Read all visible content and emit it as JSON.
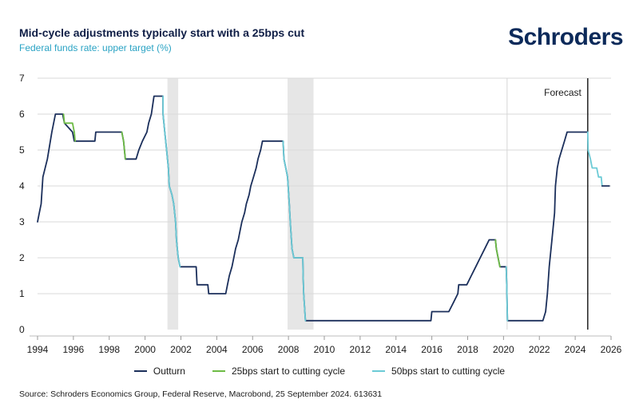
{
  "header": {
    "title": "Mid-cycle adjustments typically start with a 25bps cut",
    "subtitle": "Federal funds rate: upper target (%)",
    "brand": "Schroders"
  },
  "footer": {
    "source": "Source: Schroders Economics Group, Federal Reserve, Macrobond, 25 September 2024. 613631"
  },
  "colors": {
    "outturn": "#1b2f5b",
    "cut25": "#6dbb45",
    "cut50": "#6ccbd6",
    "shade": "#e6e6e6",
    "grid": "#d9d9d9"
  },
  "chart_data": {
    "type": "line",
    "xlim": [
      1994,
      2026
    ],
    "ylim": [
      0,
      7
    ],
    "x_ticks": [
      "1994",
      "1996",
      "1998",
      "2000",
      "2002",
      "2004",
      "2006",
      "2008",
      "2010",
      "2012",
      "2014",
      "2016",
      "2018",
      "2020",
      "2022",
      "2024",
      "2026"
    ],
    "y_ticks": [
      "0",
      "1",
      "2",
      "3",
      "4",
      "5",
      "6",
      "7"
    ],
    "grid": true,
    "legend_position": "bottom",
    "annotation": "Forecast",
    "forecast_start": 2024.7,
    "shaded_periods": [
      [
        2001.25,
        2001.85
      ],
      [
        2007.95,
        2009.4
      ]
    ],
    "series": [
      {
        "name": "Outturn",
        "key": "outturn",
        "points": [
          [
            1994.0,
            3.0
          ],
          [
            1994.1,
            3.25
          ],
          [
            1994.2,
            3.5
          ],
          [
            1994.3,
            4.25
          ],
          [
            1994.55,
            4.75
          ],
          [
            1994.8,
            5.5
          ],
          [
            1995.0,
            6.0
          ],
          [
            1995.4,
            6.0
          ],
          [
            1995.5,
            5.75
          ],
          [
            1995.95,
            5.5
          ],
          [
            1996.05,
            5.25
          ],
          [
            1997.2,
            5.25
          ],
          [
            1997.25,
            5.5
          ],
          [
            1998.7,
            5.5
          ],
          [
            1998.8,
            5.25
          ],
          [
            1998.85,
            5.0
          ],
          [
            1998.9,
            4.75
          ],
          [
            1999.5,
            4.75
          ],
          [
            1999.65,
            5.0
          ],
          [
            1999.85,
            5.25
          ],
          [
            2000.1,
            5.5
          ],
          [
            2000.2,
            5.75
          ],
          [
            2000.35,
            6.0
          ],
          [
            2000.5,
            6.5
          ],
          [
            2001.0,
            6.5
          ],
          [
            2001.0,
            6.0
          ],
          [
            2001.1,
            5.5
          ],
          [
            2001.2,
            5.0
          ],
          [
            2001.3,
            4.5
          ],
          [
            2001.35,
            4.0
          ],
          [
            2001.5,
            3.75
          ],
          [
            2001.6,
            3.5
          ],
          [
            2001.7,
            3.0
          ],
          [
            2001.75,
            2.5
          ],
          [
            2001.85,
            2.0
          ],
          [
            2001.95,
            1.75
          ],
          [
            2002.85,
            1.75
          ],
          [
            2002.9,
            1.25
          ],
          [
            2003.5,
            1.25
          ],
          [
            2003.55,
            1.0
          ],
          [
            2004.5,
            1.0
          ],
          [
            2004.6,
            1.25
          ],
          [
            2004.7,
            1.5
          ],
          [
            2004.85,
            1.75
          ],
          [
            2004.95,
            2.0
          ],
          [
            2005.05,
            2.25
          ],
          [
            2005.2,
            2.5
          ],
          [
            2005.3,
            2.75
          ],
          [
            2005.4,
            3.0
          ],
          [
            2005.55,
            3.25
          ],
          [
            2005.65,
            3.5
          ],
          [
            2005.8,
            3.75
          ],
          [
            2005.9,
            4.0
          ],
          [
            2006.05,
            4.25
          ],
          [
            2006.2,
            4.5
          ],
          [
            2006.3,
            4.75
          ],
          [
            2006.45,
            5.0
          ],
          [
            2006.55,
            5.25
          ],
          [
            2007.7,
            5.25
          ],
          [
            2007.75,
            4.75
          ],
          [
            2007.85,
            4.5
          ],
          [
            2007.95,
            4.25
          ],
          [
            2008.05,
            3.5
          ],
          [
            2008.1,
            3.0
          ],
          [
            2008.2,
            2.25
          ],
          [
            2008.3,
            2.0
          ],
          [
            2008.8,
            2.0
          ],
          [
            2008.82,
            1.5
          ],
          [
            2008.85,
            1.0
          ],
          [
            2008.95,
            0.25
          ],
          [
            2015.95,
            0.25
          ],
          [
            2016.0,
            0.5
          ],
          [
            2016.95,
            0.5
          ],
          [
            2017.2,
            0.75
          ],
          [
            2017.45,
            1.0
          ],
          [
            2017.5,
            1.25
          ],
          [
            2017.95,
            1.25
          ],
          [
            2018.2,
            1.5
          ],
          [
            2018.45,
            1.75
          ],
          [
            2018.7,
            2.0
          ],
          [
            2018.95,
            2.25
          ],
          [
            2019.2,
            2.5
          ],
          [
            2019.55,
            2.5
          ],
          [
            2019.6,
            2.25
          ],
          [
            2019.7,
            2.0
          ],
          [
            2019.8,
            1.75
          ],
          [
            2020.15,
            1.75
          ],
          [
            2020.18,
            1.25
          ],
          [
            2020.22,
            0.25
          ],
          [
            2022.2,
            0.25
          ],
          [
            2022.35,
            0.5
          ],
          [
            2022.45,
            1.0
          ],
          [
            2022.55,
            1.75
          ],
          [
            2022.7,
            2.5
          ],
          [
            2022.85,
            3.25
          ],
          [
            2022.9,
            4.0
          ],
          [
            2023.0,
            4.5
          ],
          [
            2023.1,
            4.75
          ],
          [
            2023.25,
            5.0
          ],
          [
            2023.4,
            5.25
          ],
          [
            2023.55,
            5.5
          ],
          [
            2024.7,
            5.5
          ]
        ]
      },
      {
        "name": "25bps start to cutting cycle",
        "key": "cut25",
        "segments": [
          [
            [
              1995.45,
              6.0
            ],
            [
              1995.5,
              5.75
            ],
            [
              1995.95,
              5.75
            ],
            [
              1996.05,
              5.5
            ],
            [
              1996.1,
              5.25
            ]
          ],
          [
            [
              1998.7,
              5.5
            ],
            [
              1998.8,
              5.25
            ],
            [
              1998.85,
              5.0
            ],
            [
              1998.9,
              4.75
            ]
          ],
          [
            [
              2019.55,
              2.5
            ],
            [
              2019.6,
              2.25
            ],
            [
              2019.7,
              2.0
            ],
            [
              2019.8,
              1.75
            ]
          ]
        ]
      },
      {
        "name": "50bps start to cutting cycle",
        "key": "cut50",
        "segments": [
          [
            [
              2001.0,
              6.5
            ],
            [
              2001.0,
              6.0
            ],
            [
              2001.1,
              5.5
            ],
            [
              2001.2,
              5.0
            ],
            [
              2001.3,
              4.5
            ],
            [
              2001.35,
              4.0
            ],
            [
              2001.5,
              3.75
            ],
            [
              2001.6,
              3.5
            ],
            [
              2001.7,
              3.0
            ],
            [
              2001.75,
              2.5
            ],
            [
              2001.85,
              2.0
            ],
            [
              2001.95,
              1.75
            ]
          ],
          [
            [
              2007.7,
              5.25
            ],
            [
              2007.75,
              4.75
            ],
            [
              2007.85,
              4.5
            ],
            [
              2007.95,
              4.25
            ],
            [
              2008.05,
              3.5
            ],
            [
              2008.1,
              3.0
            ],
            [
              2008.2,
              2.25
            ],
            [
              2008.3,
              2.0
            ],
            [
              2008.8,
              2.0
            ],
            [
              2008.82,
              1.5
            ],
            [
              2008.85,
              1.0
            ],
            [
              2008.95,
              0.25
            ]
          ],
          [
            [
              2020.15,
              1.75
            ],
            [
              2020.18,
              1.25
            ],
            [
              2020.22,
              0.25
            ]
          ],
          [
            [
              2024.7,
              5.5
            ],
            [
              2024.72,
              5.0
            ],
            [
              2024.85,
              4.75
            ],
            [
              2024.95,
              4.5
            ],
            [
              2025.2,
              4.5
            ],
            [
              2025.3,
              4.25
            ],
            [
              2025.45,
              4.25
            ],
            [
              2025.5,
              4.0
            ]
          ]
        ]
      },
      {
        "name": "Outturn forecast",
        "key": "outturn",
        "points": [
          [
            2025.5,
            4.0
          ],
          [
            2025.9,
            4.0
          ]
        ]
      }
    ]
  },
  "legend": [
    {
      "label": "Outturn",
      "color": "#1b2f5b"
    },
    {
      "label": "25bps start to cutting cycle",
      "color": "#6dbb45"
    },
    {
      "label": "50bps start to cutting cycle",
      "color": "#6ccbd6"
    }
  ]
}
